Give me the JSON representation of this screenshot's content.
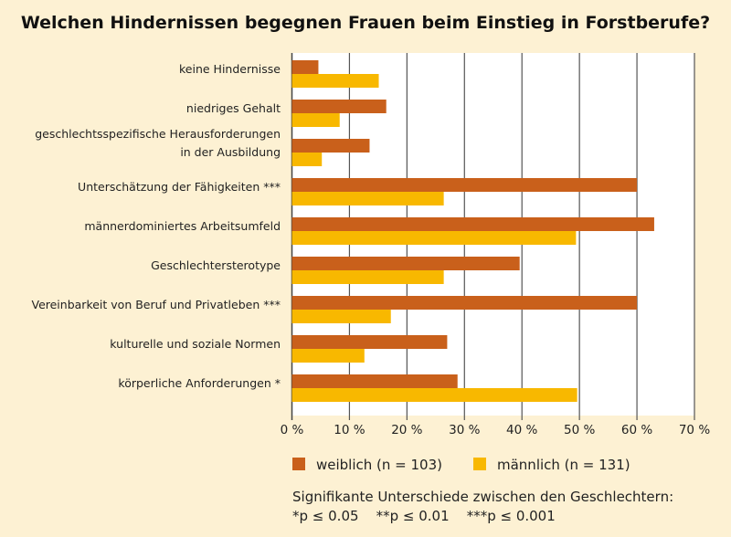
{
  "chart_data": {
    "type": "bar",
    "orientation": "horizontal",
    "title": "Welchen Hindernissen begegnen Frauen beim Einstieg in Forstberufe?",
    "categories": [
      [
        "keine Hindernisse"
      ],
      [
        "niedriges Gehalt"
      ],
      [
        "geschlechtsspezifische Herausforderungen",
        "in der Ausbildung"
      ],
      [
        "Unterschätzung der Fähigkeiten ***"
      ],
      [
        "männerdominiertes Arbeitsumfeld"
      ],
      [
        "Geschlechtersterotype"
      ],
      [
        "Vereinbarkeit von Beruf und Privatleben ***"
      ],
      [
        "kulturelle und soziale Normen"
      ],
      [
        "körperliche Anforderungen *"
      ]
    ],
    "series": [
      {
        "name": "weiblich (n = 103)",
        "color": "#c9601b",
        "values": [
          4.6,
          16.4,
          13.5,
          60.0,
          63.0,
          39.6,
          60.0,
          27.0,
          28.8
        ]
      },
      {
        "name": "männlich (n = 131)",
        "color": "#f8b800",
        "values": [
          15.1,
          8.3,
          5.2,
          26.4,
          49.4,
          26.4,
          17.2,
          12.6,
          49.6
        ]
      }
    ],
    "xlim": [
      0,
      70
    ],
    "xticks": [
      "0 %",
      "10 %",
      "20 %",
      "30 %",
      "40 %",
      "50 %",
      "60 %",
      "70 %"
    ],
    "grid": true,
    "legend_position": "bottom",
    "notes": [
      "Signifikante Unterschiede zwischen den Geschlechtern:",
      "*p ≤ 0.05    **p ≤ 0.01    ***p ≤ 0.001"
    ]
  }
}
